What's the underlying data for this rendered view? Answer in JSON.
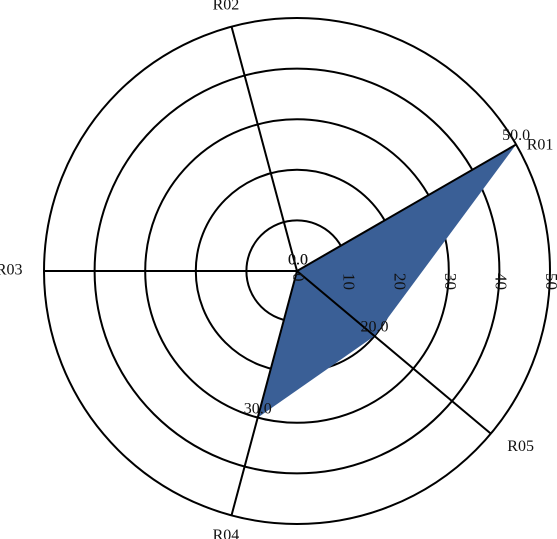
{
  "chart_data": {
    "type": "radar",
    "categories": [
      "R01",
      "R02",
      "R03",
      "R04",
      "R05"
    ],
    "angles_deg": [
      30,
      105,
      180,
      255,
      320
    ],
    "series": [
      {
        "values": [
          50,
          0,
          0,
          30,
          20
        ]
      }
    ],
    "data_labels": [
      "50.0",
      "0.0",
      "0.0",
      "30.0",
      "20.0"
    ],
    "radial_ticks": [
      "0",
      "10",
      "20",
      "30",
      "40",
      "50"
    ],
    "rmax": 50,
    "radial_tick_rotation_deg": 90,
    "grid": true
  },
  "colors": {
    "fill": "#3a5f96",
    "grid": "#000000"
  }
}
